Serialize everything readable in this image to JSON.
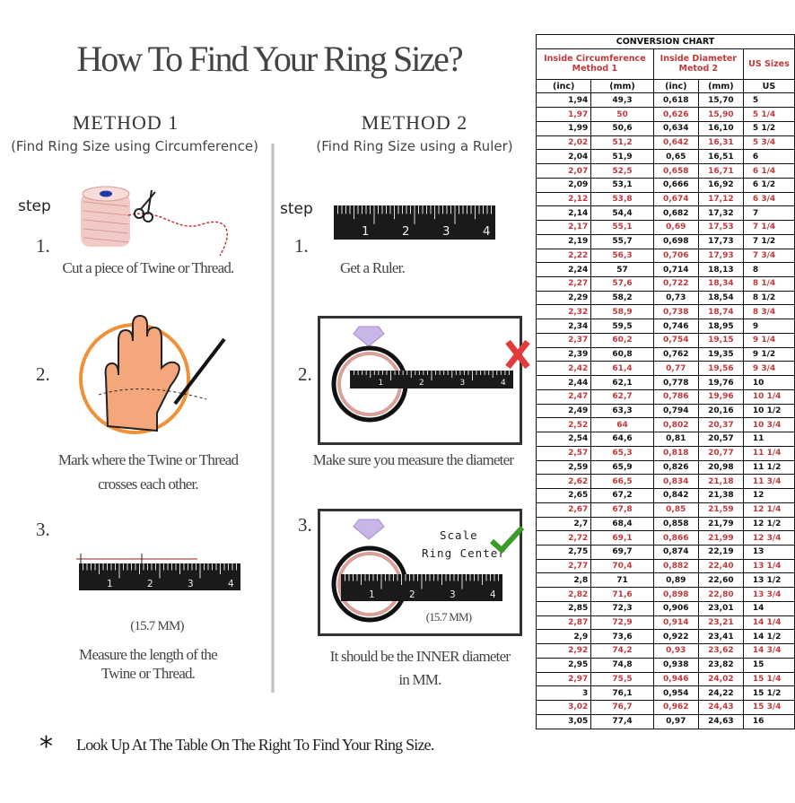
{
  "title": "How To Find Your Ring Size?",
  "method1": {
    "heading": "METHOD 1",
    "subtitle": "(Find Ring Size using Circumference)",
    "step_label": "step",
    "steps": [
      {
        "num": "1.",
        "text": "Cut a piece of  Twine or Thread."
      },
      {
        "num": "2.",
        "text": "Mark where the Twine or Thread",
        "text2": "crosses each other."
      },
      {
        "num": "3.",
        "measure": "(15.7 MM)",
        "text": "Measure the length of the",
        "text2": "Twine or Thread."
      }
    ]
  },
  "method2": {
    "heading": "METHOD 2",
    "subtitle": "(Find Ring Size using a Ruler)",
    "step_label": "step",
    "steps": [
      {
        "num": "1.",
        "text": "Get a Ruler."
      },
      {
        "num": "2.",
        "text": "Make sure you measure the diameter"
      },
      {
        "num": "3.",
        "scale": "Scale",
        "ring_center": "Ring Center",
        "measure": "(15.7 MM)",
        "text": "It should be the INNER diameter",
        "text2": "in MM."
      }
    ]
  },
  "ruler_labels": [
    "1",
    "2",
    "3",
    "4"
  ],
  "footer": {
    "mark": "*",
    "text": "Look Up At The Table On The Right To Find Your Ring Size."
  },
  "colors": {
    "accent_red": "#c0393b",
    "check_green": "#3a9a2a",
    "wrong_red": "#e23b3b"
  },
  "table": {
    "title": "CONVERSION CHART",
    "group1": "Inside Circumference",
    "group1_sub": "Method 1",
    "group2": "Inside Diameter",
    "group2_sub": "Metod 2",
    "group3": "US Sizes",
    "units": [
      "(inc)",
      "(mm)",
      "(inc)",
      "(mm)",
      "US"
    ],
    "rows": [
      [
        "1,94",
        "49,3",
        "0,618",
        "15,70",
        "5"
      ],
      [
        "1,97",
        "50",
        "0,626",
        "15,90",
        "5 1/4"
      ],
      [
        "1,99",
        "50,6",
        "0,634",
        "16,10",
        "5 1/2"
      ],
      [
        "2,02",
        "51,2",
        "0,642",
        "16,31",
        "5 3/4"
      ],
      [
        "2,04",
        "51,9",
        "0,65",
        "16,51",
        "6"
      ],
      [
        "2,07",
        "52,5",
        "0,658",
        "16,71",
        "6 1/4"
      ],
      [
        "2,09",
        "53,1",
        "0,666",
        "16,92",
        "6 1/2"
      ],
      [
        "2,12",
        "53,8",
        "0,674",
        "17,12",
        "6 3/4"
      ],
      [
        "2,14",
        "54,4",
        "0,682",
        "17,32",
        "7"
      ],
      [
        "2,17",
        "55,1",
        "0,69",
        "17,53",
        "7 1/4"
      ],
      [
        "2,19",
        "55,7",
        "0,698",
        "17,73",
        "7 1/2"
      ],
      [
        "2,22",
        "56,3",
        "0,706",
        "17,93",
        "7 3/4"
      ],
      [
        "2,24",
        "57",
        "0,714",
        "18,13",
        "8"
      ],
      [
        "2,27",
        "57,6",
        "0,722",
        "18,34",
        "8 1/4"
      ],
      [
        "2,29",
        "58,2",
        "0,73",
        "18,54",
        "8 1/2"
      ],
      [
        "2,32",
        "58,9",
        "0,738",
        "18,74",
        "8 3/4"
      ],
      [
        "2,34",
        "59,5",
        "0,746",
        "18,95",
        "9"
      ],
      [
        "2,37",
        "60,2",
        "0,754",
        "19,15",
        "9 1/4"
      ],
      [
        "2,39",
        "60,8",
        "0,762",
        "19,35",
        "9 1/2"
      ],
      [
        "2,42",
        "61,4",
        "0,77",
        "19,56",
        "9 3/4"
      ],
      [
        "2,44",
        "62,1",
        "0,778",
        "19,76",
        "10"
      ],
      [
        "2,47",
        "62,7",
        "0,786",
        "19,96",
        "10 1/4"
      ],
      [
        "2,49",
        "63,3",
        "0,794",
        "20,16",
        "10 1/2"
      ],
      [
        "2,52",
        "64",
        "0,802",
        "20,37",
        "10 3/4"
      ],
      [
        "2,54",
        "64,6",
        "0,81",
        "20,57",
        "11"
      ],
      [
        "2,57",
        "65,3",
        "0,818",
        "20,77",
        "11 1/4"
      ],
      [
        "2,59",
        "65,9",
        "0,826",
        "20,98",
        "11 1/2"
      ],
      [
        "2,62",
        "66,5",
        "0,834",
        "21,18",
        "11 3/4"
      ],
      [
        "2,65",
        "67,2",
        "0,842",
        "21,38",
        "12"
      ],
      [
        "2,67",
        "67,8",
        "0,85",
        "21,59",
        "12 1/4"
      ],
      [
        "2,7",
        "68,4",
        "0,858",
        "21,79",
        "12 1/2"
      ],
      [
        "2,72",
        "69,1",
        "0,866",
        "21,99",
        "12 3/4"
      ],
      [
        "2,75",
        "69,7",
        "0,874",
        "22,19",
        "13"
      ],
      [
        "2,77",
        "70,4",
        "0,882",
        "22,40",
        "13 1/4"
      ],
      [
        "2,8",
        "71",
        "0,89",
        "22,60",
        "13 1/2"
      ],
      [
        "2,82",
        "71,6",
        "0,898",
        "22,80",
        "13 3/4"
      ],
      [
        "2,85",
        "72,3",
        "0,906",
        "23,01",
        "14"
      ],
      [
        "2,87",
        "72,9",
        "0,914",
        "23,21",
        "14 1/4"
      ],
      [
        "2,9",
        "73,6",
        "0,922",
        "23,41",
        "14 1/2"
      ],
      [
        "2,92",
        "74,2",
        "0,93",
        "23,62",
        "14 3/4"
      ],
      [
        "2,95",
        "74,8",
        "0,938",
        "23,82",
        "15"
      ],
      [
        "2,97",
        "75,5",
        "0,946",
        "24,02",
        "15 1/4"
      ],
      [
        "3",
        "76,1",
        "0,954",
        "24,22",
        "15 1/2"
      ],
      [
        "3,02",
        "76,7",
        "0,962",
        "24,43",
        "15 3/4"
      ],
      [
        "3,05",
        "77,4",
        "0,97",
        "24,63",
        "16"
      ]
    ]
  }
}
